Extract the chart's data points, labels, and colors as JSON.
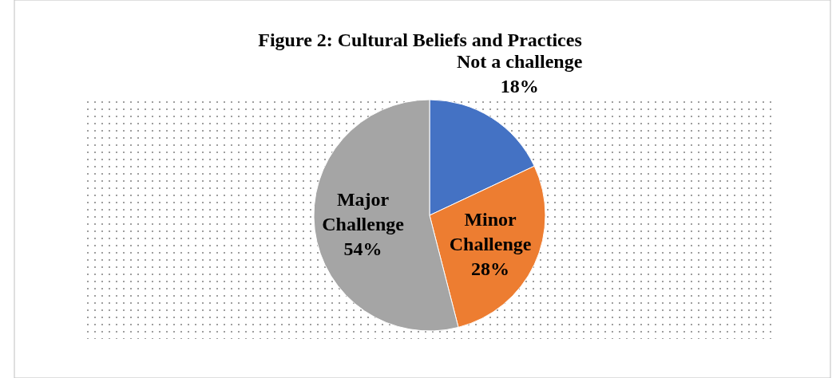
{
  "chart_data": {
    "type": "pie",
    "title": "Figure 2: Cultural Beliefs and Practices",
    "categories": [
      "Not a challenge",
      "Minor Challenge",
      "Major Challenge"
    ],
    "values": [
      18,
      28,
      54
    ],
    "colors": [
      "#4472c4",
      "#ed7d31",
      "#a5a5a5"
    ],
    "value_labels": [
      "18%",
      "28%",
      "54%"
    ]
  }
}
